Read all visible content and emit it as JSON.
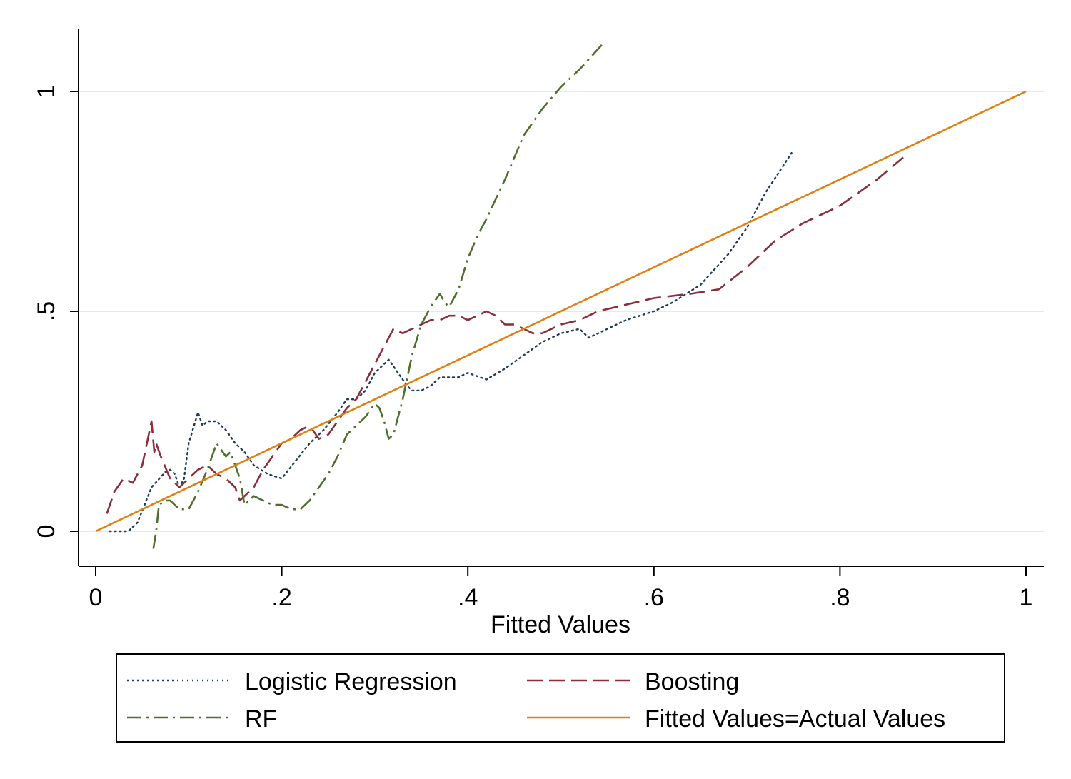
{
  "chart_data": {
    "type": "line",
    "xlabel": "Fitted Values",
    "ylabel": "",
    "xlim": [
      -0.02,
      1.02
    ],
    "ylim": [
      -0.08,
      1.14
    ],
    "xticks": [
      0,
      0.2,
      0.4,
      0.6,
      0.8,
      1
    ],
    "xtick_labels": [
      "0",
      ".2",
      ".4",
      ".6",
      ".8",
      "1"
    ],
    "yticks": [
      0,
      0.5,
      1
    ],
    "ytick_labels": [
      "0",
      ".5",
      "1"
    ],
    "grid": "horizontal",
    "legend_position": "bottom",
    "series": [
      {
        "name": "Logistic Regression",
        "style": "dotted",
        "color": "#1f3d5a",
        "x": [
          0.015,
          0.035,
          0.045,
          0.06,
          0.075,
          0.08,
          0.085,
          0.09,
          0.095,
          0.1,
          0.11,
          0.115,
          0.12,
          0.13,
          0.14,
          0.15,
          0.16,
          0.17,
          0.185,
          0.2,
          0.215,
          0.23,
          0.245,
          0.26,
          0.27,
          0.28,
          0.29,
          0.3,
          0.31,
          0.315,
          0.325,
          0.335,
          0.34,
          0.35,
          0.36,
          0.37,
          0.38,
          0.39,
          0.4,
          0.42,
          0.44,
          0.46,
          0.48,
          0.5,
          0.52,
          0.53,
          0.55,
          0.57,
          0.6,
          0.62,
          0.65,
          0.68,
          0.7,
          0.72,
          0.748
        ],
        "y": [
          0.0,
          0.0,
          0.02,
          0.1,
          0.135,
          0.14,
          0.13,
          0.1,
          0.12,
          0.2,
          0.27,
          0.24,
          0.25,
          0.25,
          0.23,
          0.2,
          0.18,
          0.15,
          0.13,
          0.12,
          0.16,
          0.2,
          0.23,
          0.27,
          0.3,
          0.3,
          0.32,
          0.36,
          0.38,
          0.39,
          0.36,
          0.33,
          0.32,
          0.32,
          0.33,
          0.35,
          0.35,
          0.35,
          0.36,
          0.345,
          0.37,
          0.4,
          0.43,
          0.45,
          0.46,
          0.44,
          0.46,
          0.48,
          0.5,
          0.52,
          0.56,
          0.63,
          0.69,
          0.77,
          0.86
        ]
      },
      {
        "name": "Boosting",
        "style": "dashed",
        "color": "#8b2e3c",
        "x": [
          0.012,
          0.02,
          0.03,
          0.04,
          0.05,
          0.055,
          0.06,
          0.063,
          0.065,
          0.07,
          0.08,
          0.09,
          0.1,
          0.11,
          0.12,
          0.13,
          0.14,
          0.15,
          0.155,
          0.16,
          0.17,
          0.18,
          0.19,
          0.2,
          0.21,
          0.22,
          0.23,
          0.24,
          0.25,
          0.26,
          0.27,
          0.28,
          0.29,
          0.3,
          0.31,
          0.32,
          0.33,
          0.34,
          0.35,
          0.36,
          0.37,
          0.38,
          0.39,
          0.4,
          0.41,
          0.42,
          0.43,
          0.44,
          0.45,
          0.46,
          0.47,
          0.48,
          0.5,
          0.52,
          0.54,
          0.56,
          0.58,
          0.6,
          0.62,
          0.64,
          0.67,
          0.7,
          0.73,
          0.76,
          0.8,
          0.84,
          0.868
        ],
        "y": [
          0.04,
          0.09,
          0.12,
          0.11,
          0.15,
          0.2,
          0.25,
          0.18,
          0.2,
          0.17,
          0.12,
          0.1,
          0.12,
          0.14,
          0.15,
          0.13,
          0.12,
          0.1,
          0.07,
          0.08,
          0.1,
          0.14,
          0.17,
          0.2,
          0.21,
          0.23,
          0.24,
          0.21,
          0.22,
          0.25,
          0.28,
          0.3,
          0.34,
          0.38,
          0.42,
          0.46,
          0.45,
          0.46,
          0.47,
          0.48,
          0.48,
          0.49,
          0.49,
          0.48,
          0.49,
          0.5,
          0.49,
          0.47,
          0.47,
          0.46,
          0.45,
          0.45,
          0.47,
          0.48,
          0.5,
          0.51,
          0.52,
          0.53,
          0.535,
          0.54,
          0.55,
          0.6,
          0.66,
          0.7,
          0.74,
          0.8,
          0.85
        ]
      },
      {
        "name": "RF",
        "style": "dashdot",
        "color": "#4e6e2b",
        "x": [
          0.062,
          0.065,
          0.068,
          0.075,
          0.08,
          0.09,
          0.1,
          0.11,
          0.12,
          0.13,
          0.14,
          0.145,
          0.15,
          0.155,
          0.16,
          0.17,
          0.18,
          0.19,
          0.2,
          0.21,
          0.22,
          0.23,
          0.24,
          0.25,
          0.26,
          0.27,
          0.28,
          0.29,
          0.3,
          0.305,
          0.31,
          0.315,
          0.32,
          0.33,
          0.34,
          0.35,
          0.36,
          0.37,
          0.375,
          0.38,
          0.39,
          0.4,
          0.41,
          0.42,
          0.44,
          0.46,
          0.48,
          0.5,
          0.52,
          0.546
        ],
        "y": [
          -0.04,
          0.0,
          0.06,
          0.07,
          0.07,
          0.05,
          0.05,
          0.09,
          0.14,
          0.2,
          0.17,
          0.18,
          0.15,
          0.12,
          0.06,
          0.08,
          0.07,
          0.06,
          0.06,
          0.05,
          0.05,
          0.07,
          0.1,
          0.13,
          0.17,
          0.22,
          0.24,
          0.26,
          0.29,
          0.28,
          0.25,
          0.21,
          0.22,
          0.3,
          0.4,
          0.47,
          0.51,
          0.54,
          0.52,
          0.51,
          0.55,
          0.62,
          0.67,
          0.71,
          0.8,
          0.9,
          0.96,
          1.01,
          1.05,
          1.11
        ]
      },
      {
        "name": "Fitted Values=Actual Values",
        "style": "solid",
        "color": "#e07f12",
        "x": [
          0,
          1
        ],
        "y": [
          0,
          1
        ]
      }
    ]
  }
}
